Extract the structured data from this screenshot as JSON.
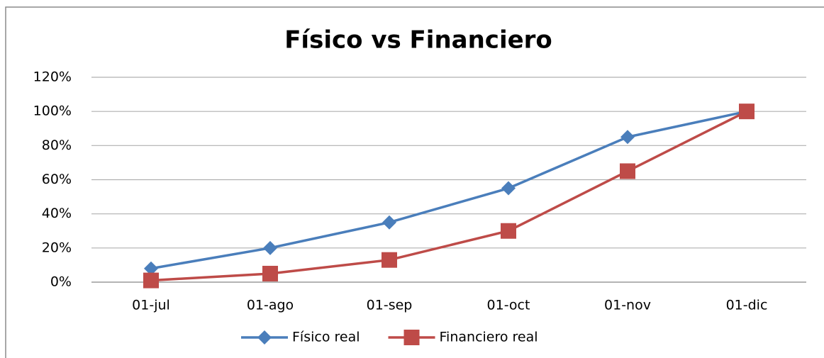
{
  "chart_data": {
    "type": "line",
    "title": "Físico vs Financiero",
    "categories": [
      "01-jul",
      "01-ago",
      "01-sep",
      "01-oct",
      "01-nov",
      "01-dic"
    ],
    "series": [
      {
        "name": "Físico real",
        "color": "#4a7ebb",
        "marker": "diamond",
        "values": [
          8,
          20,
          35,
          55,
          85,
          100
        ]
      },
      {
        "name": "Financiero real",
        "color": "#be4b48",
        "marker": "square",
        "values": [
          1,
          5,
          13,
          30,
          65,
          100
        ]
      }
    ],
    "ylim": [
      0,
      120
    ],
    "yticks": [
      {
        "value": 0,
        "label": "0%"
      },
      {
        "value": 20,
        "label": "20%"
      },
      {
        "value": 40,
        "label": "40%"
      },
      {
        "value": 60,
        "label": "60%"
      },
      {
        "value": 80,
        "label": "80%"
      },
      {
        "value": 100,
        "label": "100%"
      },
      {
        "value": 120,
        "label": "120%"
      }
    ],
    "grid": true,
    "legend": "bottom"
  }
}
